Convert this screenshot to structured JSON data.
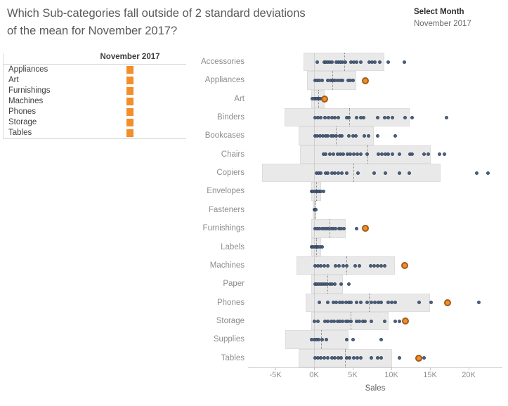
{
  "title": {
    "line1": "Which Sub-categories fall outside of 2 standard deviations",
    "line2": "of the mean for November 2017?"
  },
  "filter": {
    "label": "Select Month",
    "value": "November 2017"
  },
  "legend_table": {
    "header": "November 2017",
    "rows": [
      "Appliances",
      "Art",
      "Furnishings",
      "Machines",
      "Phones",
      "Storage",
      "Tables"
    ],
    "mark_color": "#f28e2b"
  },
  "chart_data": {
    "type": "scatter",
    "title": "",
    "xlabel": "Sales",
    "unit": "K",
    "x_ticks": [
      "-5K",
      "0K",
      "5K",
      "10K",
      "15K",
      "20K"
    ],
    "x_tick_values": [
      -5,
      0,
      5,
      10,
      15,
      20
    ],
    "xlim": [
      -8.5,
      24.4
    ],
    "grid": "zero-line-only",
    "band_meaning": "mean +/- 2 standard deviations",
    "colors": {
      "point": "#47597a",
      "november_point": "#f28e2b",
      "band": "#e9e9e9"
    },
    "categories": [
      {
        "name": "Accessories",
        "band": [
          -1.4,
          9.1
        ],
        "mean": 3.9,
        "november": null,
        "points": [
          0.4,
          1.3,
          1.5,
          1.8,
          2.0,
          2.3,
          2.9,
          3.1,
          3.4,
          3.7,
          4.0,
          4.8,
          5.1,
          5.5,
          6.0,
          7.1,
          7.5,
          7.9,
          8.5,
          9.6,
          11.7
        ]
      },
      {
        "name": "Appliances",
        "band": [
          -0.9,
          5.5
        ],
        "mean": 2.4,
        "november": 6.6,
        "points": [
          0.1,
          0.4,
          0.7,
          1.0,
          1.8,
          2.1,
          2.4,
          2.7,
          3.0,
          3.4,
          3.7,
          4.4,
          4.7,
          5.0
        ]
      },
      {
        "name": "Art",
        "band": [
          -0.4,
          1.4
        ],
        "mean": 0.5,
        "november": 1.4,
        "points": [
          -0.2,
          0.0,
          0.2,
          0.4,
          0.6,
          0.8,
          1.0,
          1.2
        ]
      },
      {
        "name": "Binders",
        "band": [
          -3.8,
          12.4
        ],
        "mean": 4.5,
        "november": null,
        "points": [
          0.1,
          0.5,
          0.9,
          1.4,
          1.9,
          2.3,
          2.7,
          3.1,
          4.2,
          4.5,
          5.5,
          6.0,
          6.4,
          8.2,
          9.1,
          9.6,
          10.1,
          11.8,
          12.7,
          17.1
        ]
      },
      {
        "name": "Bookcases",
        "band": [
          -2.0,
          7.7
        ],
        "mean": 2.8,
        "november": null,
        "points": [
          0.1,
          0.4,
          0.8,
          1.1,
          1.5,
          1.8,
          2.2,
          2.5,
          2.9,
          3.3,
          3.6,
          4.5,
          5.0,
          5.4,
          6.5,
          7.0,
          8.2,
          10.5
        ]
      },
      {
        "name": "Chairs",
        "band": [
          -1.8,
          15.1
        ],
        "mean": 6.9,
        "november": null,
        "points": [
          1.2,
          1.5,
          2.0,
          2.5,
          3.0,
          3.4,
          3.8,
          4.3,
          4.7,
          5.1,
          5.6,
          6.0,
          6.9,
          8.3,
          8.8,
          9.2,
          9.6,
          10.1,
          11.0,
          12.4,
          12.7,
          14.2,
          14.8,
          16.2,
          16.9
        ]
      },
      {
        "name": "Copiers",
        "band": [
          -6.7,
          16.4
        ],
        "mean": 5.1,
        "november": null,
        "points": [
          0.3,
          0.6,
          0.9,
          1.5,
          1.8,
          2.3,
          2.7,
          3.1,
          3.6,
          4.2,
          5.7,
          7.8,
          9.2,
          11.0,
          12.3,
          21.0,
          22.5
        ]
      },
      {
        "name": "Envelopes",
        "band": [
          -0.4,
          0.9
        ],
        "mean": 0.3,
        "november": null,
        "points": [
          -0.3,
          -0.1,
          0.1,
          0.3,
          0.5,
          0.7,
          0.9,
          1.2
        ]
      },
      {
        "name": "Fasteners",
        "band": [
          -0.2,
          0.3
        ],
        "mean": 0.1,
        "november": null,
        "points": [
          0.0,
          0.1,
          0.2
        ]
      },
      {
        "name": "Furnishings",
        "band": [
          -0.4,
          4.1
        ],
        "mean": 2.0,
        "november": 6.6,
        "points": [
          0.1,
          0.4,
          0.7,
          1.0,
          1.3,
          1.6,
          1.9,
          2.2,
          2.5,
          2.8,
          3.2,
          3.5,
          3.9,
          5.5
        ]
      },
      {
        "name": "Labels",
        "band": [
          -0.4,
          0.9
        ],
        "mean": 0.3,
        "november": null,
        "points": [
          -0.3,
          -0.1,
          0.1,
          0.3,
          0.5,
          0.8,
          1.0
        ]
      },
      {
        "name": "Machines",
        "band": [
          -2.3,
          10.5
        ],
        "mean": 4.2,
        "november": 11.7,
        "points": [
          0.1,
          0.5,
          0.9,
          1.3,
          1.8,
          2.8,
          3.2,
          3.8,
          4.2,
          5.3,
          5.9,
          7.3,
          7.8,
          8.2,
          8.7,
          9.1
        ]
      },
      {
        "name": "Paper",
        "band": [
          -0.4,
          3.7
        ],
        "mean": 1.7,
        "november": null,
        "points": [
          0.1,
          0.3,
          0.6,
          0.9,
          1.1,
          1.4,
          1.7,
          2.0,
          2.3,
          2.7,
          3.5,
          4.5
        ]
      },
      {
        "name": "Phones",
        "band": [
          -1.1,
          15.0
        ],
        "mean": 7.1,
        "november": 17.3,
        "points": [
          0.7,
          1.8,
          2.5,
          2.9,
          3.3,
          3.7,
          4.1,
          4.5,
          4.8,
          5.5,
          6.0,
          6.9,
          7.4,
          7.9,
          8.3,
          8.7,
          9.6,
          10.0,
          10.5,
          13.6,
          15.1,
          21.3
        ]
      },
      {
        "name": "Storage",
        "band": [
          -0.4,
          9.6
        ],
        "mean": 4.7,
        "november": 11.8,
        "points": [
          0.0,
          0.5,
          1.4,
          1.8,
          2.2,
          2.6,
          3.0,
          3.3,
          3.7,
          4.1,
          4.4,
          4.8,
          5.5,
          5.9,
          6.3,
          6.6,
          7.4,
          9.1,
          10.5,
          11.0
        ]
      },
      {
        "name": "Supplies",
        "band": [
          -3.7,
          4.5
        ],
        "mean": 0.9,
        "november": null,
        "points": [
          -0.3,
          0.0,
          0.3,
          0.6,
          1.0,
          1.6,
          4.2,
          5.0,
          8.7
        ]
      },
      {
        "name": "Tables",
        "band": [
          -2.0,
          10.1
        ],
        "mean": 4.0,
        "november": 13.5,
        "points": [
          0.1,
          0.5,
          0.9,
          1.3,
          1.8,
          2.3,
          2.7,
          3.1,
          3.5,
          4.2,
          4.6,
          5.1,
          5.6,
          6.0,
          7.4,
          8.2,
          8.7,
          11.0,
          14.2
        ]
      }
    ]
  }
}
